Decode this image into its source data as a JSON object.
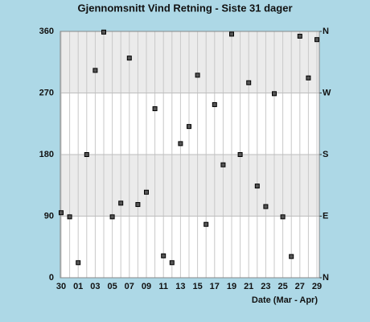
{
  "chart_data": {
    "type": "scatter",
    "title": "Gjennomsnitt Vind Retning - Siste 31 dager",
    "x_label": "Date (Mar - Apr)",
    "categories": [
      "30",
      null,
      "01",
      null,
      "03",
      null,
      "05",
      null,
      "07",
      null,
      "09",
      null,
      "11",
      null,
      "13",
      null,
      "15",
      null,
      "17",
      null,
      "19",
      null,
      "21",
      null,
      "23",
      null,
      "25",
      null,
      "27",
      null,
      "29"
    ],
    "values": [
      95,
      89,
      22,
      180,
      303,
      359,
      89,
      109,
      321,
      107,
      125,
      247,
      32,
      22,
      196,
      221,
      296,
      78,
      253,
      165,
      356,
      180,
      285,
      134,
      104,
      269,
      89,
      31,
      353,
      292,
      348
    ],
    "color": "#555555",
    "ylim": [
      0,
      360
    ],
    "yticks": [
      0,
      90,
      180,
      270,
      360
    ],
    "y2lim": [
      0,
      360
    ],
    "y2ticks": [
      {
        "value": 0,
        "label": "N"
      },
      {
        "value": 90,
        "label": "E"
      },
      {
        "value": 180,
        "label": "S"
      },
      {
        "value": 270,
        "label": "W"
      },
      {
        "value": 360,
        "label": "N"
      }
    ],
    "grid": true
  }
}
